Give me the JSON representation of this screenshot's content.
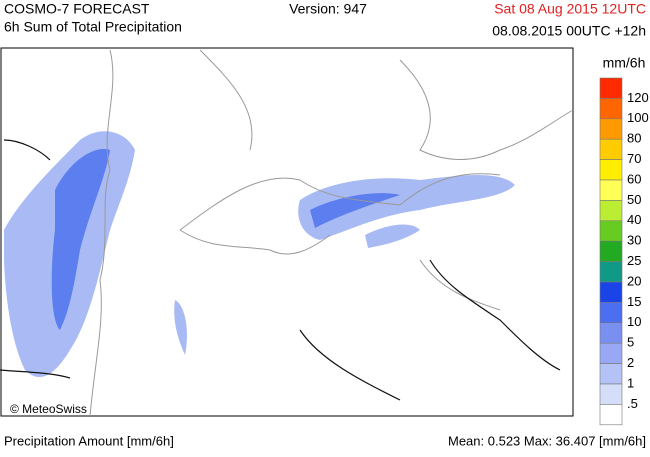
{
  "header": {
    "title": "COSMO-7 FORECAST",
    "subtitle": "6h Sum of Total Precipitation",
    "version": "Version: 947",
    "valid_time": "Sat 08 Aug 2015 12UTC",
    "run_time": "08.08.2015 00UTC +12h"
  },
  "map": {
    "credit": "© MeteoSwiss"
  },
  "legend": {
    "unit": "mm/6h",
    "labels": [
      "120",
      "100",
      "80",
      "70",
      "60",
      "50",
      "40",
      "30",
      "25",
      "20",
      "15",
      "10",
      "5",
      "2",
      "1",
      ".5"
    ],
    "colors": [
      "#ff2a00",
      "#ff6600",
      "#ff9900",
      "#ffcc00",
      "#ffee00",
      "#ffff55",
      "#bbee33",
      "#66cc22",
      "#22aa22",
      "#119988",
      "#1a44e8",
      "#4c6ef0",
      "#7a90f0",
      "#98a8f4",
      "#b4c2f8",
      "#d4def9",
      "#ffffff"
    ]
  },
  "footer": {
    "left": "Precipitation Amount [mm/6h]",
    "right": "Mean:  0.523 Max: 36.407 [mm/6h]"
  }
}
